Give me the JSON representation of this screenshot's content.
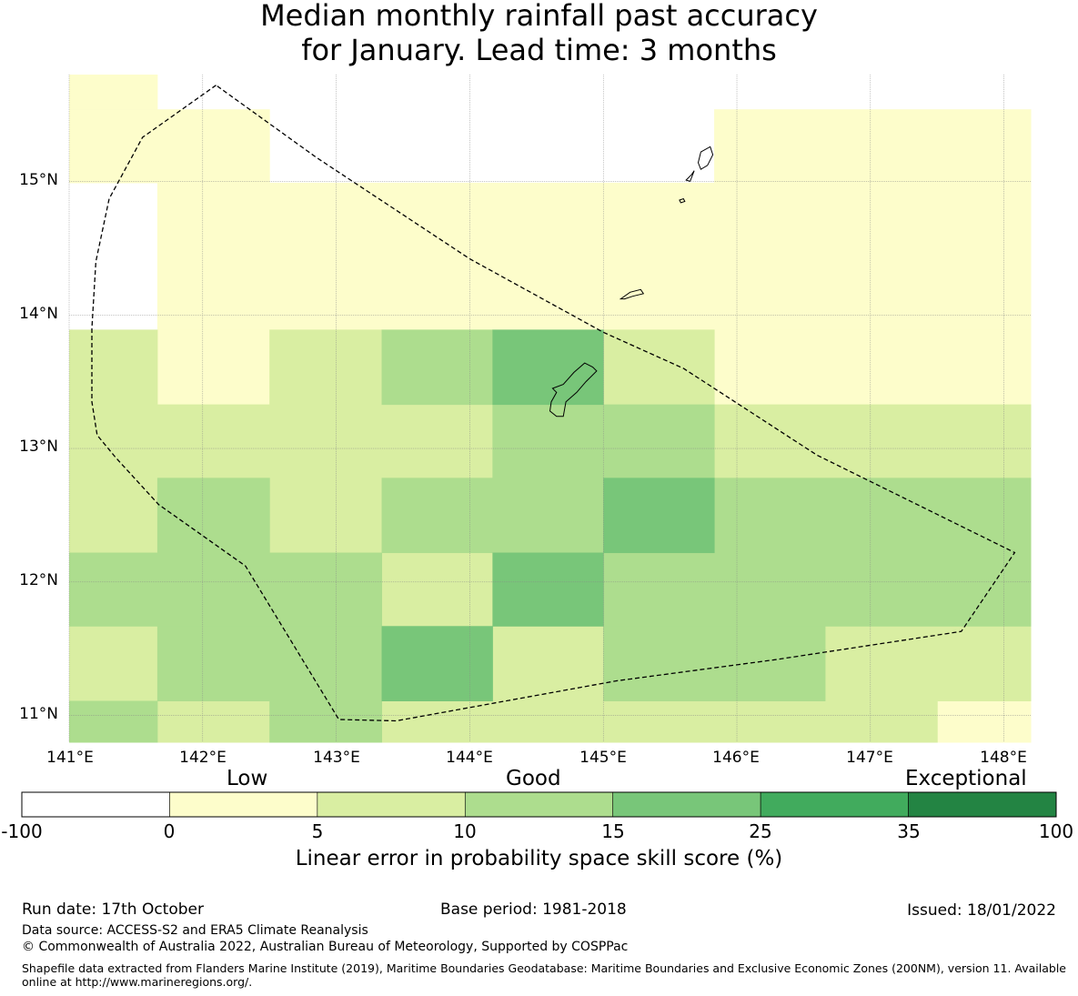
{
  "title": {
    "line1": "Median monthly rainfall past accuracy",
    "line2": "for January. Lead time: 3 months"
  },
  "map": {
    "lat_labels": [
      "15°N",
      "14°N",
      "13°N",
      "12°N",
      "11°N"
    ],
    "lon_labels": [
      "141°E",
      "142°E",
      "143°E",
      "144°E",
      "145°E",
      "146°E",
      "147°E",
      "148°E"
    ],
    "grid_lon_range": [
      141.0,
      148.2
    ],
    "grid_lat_range": [
      10.8,
      15.8
    ],
    "cells": [
      {
        "lon": [
          141.0,
          141.66
        ],
        "lat": [
          15.54,
          15.8
        ],
        "bin": 1
      },
      {
        "lon": [
          141.0,
          142.5
        ],
        "lat": [
          14.99,
          15.54
        ],
        "bin": 1
      },
      {
        "lon": [
          145.83,
          148.2
        ],
        "lat": [
          14.99,
          15.54
        ],
        "bin": 1
      },
      {
        "lon": [
          141.66,
          148.2
        ],
        "lat": [
          14.44,
          14.99
        ],
        "bin": 1
      },
      {
        "lon": [
          141.66,
          148.2
        ],
        "lat": [
          13.89,
          14.44
        ],
        "bin": 1
      },
      {
        "lon": [
          141.66,
          142.5
        ],
        "lat": [
          13.33,
          13.89
        ],
        "bin": 1
      },
      {
        "lon": [
          145.83,
          148.2
        ],
        "lat": [
          13.33,
          13.89
        ],
        "bin": 1
      },
      {
        "lon": [
          147.5,
          148.2
        ],
        "lat": [
          10.8,
          11.11
        ],
        "bin": 1
      },
      {
        "lon": [
          141.0,
          141.66
        ],
        "lat": [
          13.33,
          13.89
        ],
        "bin": 2
      },
      {
        "lon": [
          142.5,
          143.34
        ],
        "lat": [
          13.33,
          13.89
        ],
        "bin": 2
      },
      {
        "lon": [
          145.0,
          145.83
        ],
        "lat": [
          13.33,
          13.89
        ],
        "bin": 2
      },
      {
        "lon": [
          141.0,
          144.17
        ],
        "lat": [
          12.78,
          13.33
        ],
        "bin": 2
      },
      {
        "lon": [
          145.83,
          148.2
        ],
        "lat": [
          12.78,
          13.33
        ],
        "bin": 2
      },
      {
        "lon": [
          141.0,
          141.66
        ],
        "lat": [
          12.22,
          12.78
        ],
        "bin": 2
      },
      {
        "lon": [
          142.5,
          143.34
        ],
        "lat": [
          12.22,
          12.78
        ],
        "bin": 2
      },
      {
        "lon": [
          143.34,
          144.17
        ],
        "lat": [
          11.67,
          12.22
        ],
        "bin": 2
      },
      {
        "lon": [
          141.0,
          141.66
        ],
        "lat": [
          11.11,
          11.67
        ],
        "bin": 2
      },
      {
        "lon": [
          144.17,
          145.0
        ],
        "lat": [
          11.11,
          11.67
        ],
        "bin": 2
      },
      {
        "lon": [
          146.66,
          148.2
        ],
        "lat": [
          11.11,
          11.67
        ],
        "bin": 2
      },
      {
        "lon": [
          141.66,
          142.5
        ],
        "lat": [
          10.8,
          11.11
        ],
        "bin": 2
      },
      {
        "lon": [
          143.34,
          147.5
        ],
        "lat": [
          10.8,
          11.11
        ],
        "bin": 2
      },
      {
        "lon": [
          143.34,
          144.17
        ],
        "lat": [
          13.33,
          13.89
        ],
        "bin": 3
      },
      {
        "lon": [
          144.17,
          145.83
        ],
        "lat": [
          12.78,
          13.33
        ],
        "bin": 3
      },
      {
        "lon": [
          143.34,
          145.0
        ],
        "lat": [
          12.22,
          12.78
        ],
        "bin": 3
      },
      {
        "lon": [
          141.66,
          142.5
        ],
        "lat": [
          12.22,
          12.78
        ],
        "bin": 3
      },
      {
        "lon": [
          145.83,
          148.2
        ],
        "lat": [
          12.22,
          12.78
        ],
        "bin": 3
      },
      {
        "lon": [
          141.0,
          143.34
        ],
        "lat": [
          11.67,
          12.22
        ],
        "bin": 3
      },
      {
        "lon": [
          145.0,
          148.2
        ],
        "lat": [
          11.67,
          12.22
        ],
        "bin": 3
      },
      {
        "lon": [
          141.66,
          143.34
        ],
        "lat": [
          11.11,
          11.67
        ],
        "bin": 3
      },
      {
        "lon": [
          145.0,
          146.66
        ],
        "lat": [
          11.11,
          11.67
        ],
        "bin": 3
      },
      {
        "lon": [
          141.0,
          141.66
        ],
        "lat": [
          10.8,
          11.11
        ],
        "bin": 3
      },
      {
        "lon": [
          142.5,
          143.34
        ],
        "lat": [
          10.8,
          11.11
        ],
        "bin": 3
      },
      {
        "lon": [
          144.17,
          145.0
        ],
        "lat": [
          13.33,
          13.89
        ],
        "bin": 4
      },
      {
        "lon": [
          145.0,
          145.83
        ],
        "lat": [
          12.22,
          12.78
        ],
        "bin": 4
      },
      {
        "lon": [
          144.17,
          145.0
        ],
        "lat": [
          11.67,
          12.22
        ],
        "bin": 4
      },
      {
        "lon": [
          143.34,
          144.17
        ],
        "lat": [
          11.11,
          11.67
        ],
        "bin": 4
      }
    ],
    "boundary": [
      [
        142.1,
        15.72
      ],
      [
        141.55,
        15.33
      ],
      [
        141.3,
        14.87
      ],
      [
        141.2,
        14.4
      ],
      [
        141.17,
        13.9
      ],
      [
        141.17,
        13.35
      ],
      [
        141.21,
        13.1
      ],
      [
        141.35,
        12.93
      ],
      [
        141.67,
        12.58
      ],
      [
        142.32,
        12.12
      ],
      [
        143.02,
        10.97
      ],
      [
        143.45,
        10.96
      ],
      [
        145.1,
        11.26
      ],
      [
        146.3,
        11.42
      ],
      [
        147.68,
        11.63
      ],
      [
        148.08,
        12.22
      ],
      [
        146.6,
        12.95
      ],
      [
        145.6,
        13.6
      ],
      [
        145.0,
        13.87
      ],
      [
        144.0,
        14.42
      ],
      [
        142.85,
        15.18
      ],
      [
        142.1,
        15.72
      ]
    ],
    "islands": [
      [
        [
          144.62,
          13.45
        ],
        [
          144.7,
          13.48
        ],
        [
          144.78,
          13.57
        ],
        [
          144.86,
          13.64
        ],
        [
          144.92,
          13.61
        ],
        [
          144.95,
          13.58
        ],
        [
          144.87,
          13.5
        ],
        [
          144.8,
          13.42
        ],
        [
          144.72,
          13.35
        ],
        [
          144.7,
          13.24
        ],
        [
          144.65,
          13.24
        ],
        [
          144.6,
          13.28
        ],
        [
          144.61,
          13.35
        ],
        [
          144.65,
          13.42
        ],
        [
          144.62,
          13.45
        ]
      ],
      [
        [
          145.13,
          14.12
        ],
        [
          145.2,
          14.17
        ],
        [
          145.28,
          14.19
        ],
        [
          145.3,
          14.16
        ],
        [
          145.22,
          14.14
        ],
        [
          145.16,
          14.12
        ],
        [
          145.13,
          14.12
        ]
      ],
      [
        [
          145.73,
          15.22
        ],
        [
          145.8,
          15.26
        ],
        [
          145.82,
          15.2
        ],
        [
          145.78,
          15.12
        ],
        [
          145.73,
          15.09
        ],
        [
          145.71,
          15.14
        ],
        [
          145.73,
          15.22
        ]
      ],
      [
        [
          145.62,
          15.01
        ],
        [
          145.66,
          15.05
        ],
        [
          145.68,
          15.08
        ],
        [
          145.65,
          15.0
        ],
        [
          145.62,
          15.01
        ]
      ],
      [
        [
          145.57,
          14.86
        ],
        [
          145.6,
          14.87
        ],
        [
          145.61,
          14.85
        ],
        [
          145.58,
          14.84
        ],
        [
          145.57,
          14.86
        ]
      ]
    ]
  },
  "colorbar": {
    "tiers": [
      "Low",
      "Good",
      "Exceptional"
    ],
    "bins": [
      "#ffffff",
      "#fdfdcb",
      "#d9eea2",
      "#addd8e",
      "#78c679",
      "#41ab5d",
      "#238443"
    ],
    "ticks": [
      "-100",
      "0",
      "5",
      "10",
      "15",
      "25",
      "35",
      "100"
    ],
    "label": "Linear error in probability space skill score (%)"
  },
  "footer": {
    "run_date": "Run date: 17th October",
    "base_period": "Base period: 1981-2018",
    "issued": "Issued: 18/01/2022",
    "data_source": "Data source: ACCESS-S2 and ERA5 Climate Reanalysis",
    "copyright": "© Commonwealth of Australia 2022, Australian Bureau of Meteorology, Supported by COSPPac",
    "shapefile": "Shapefile data extracted from Flanders Marine Institute (2019), Maritime Boundaries Geodatabase: Maritime Boundaries and Exclusive Economic Zones (200NM), version 11. Available online at http://www.marineregions.org/."
  }
}
